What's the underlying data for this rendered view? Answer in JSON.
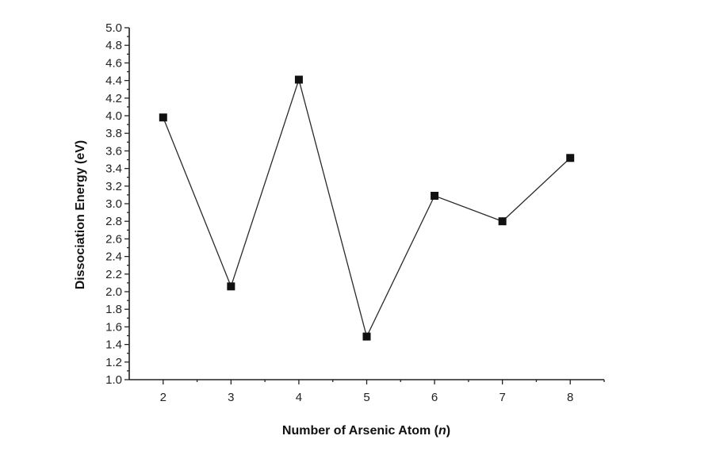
{
  "chart_data": {
    "type": "line",
    "xlabel": "Number of Arsenic Atom (n)",
    "ylabel": "Dissociation Energy (eV)",
    "x": [
      2,
      3,
      4,
      5,
      6,
      7,
      8
    ],
    "series": [
      {
        "values": [
          3.98,
          2.06,
          4.41,
          1.49,
          3.09,
          2.8,
          3.52
        ]
      }
    ],
    "xlim": [
      1.5,
      8.5
    ],
    "ylim": [
      1.0,
      5.0
    ],
    "xticks": [
      2,
      3,
      4,
      5,
      6,
      7,
      8
    ],
    "yticks": [
      1.0,
      1.2,
      1.4,
      1.6,
      1.8,
      2.0,
      2.2,
      2.4,
      2.6,
      2.8,
      3.0,
      3.2,
      3.4,
      3.6,
      3.8,
      4.0,
      4.2,
      4.4,
      4.6,
      4.8,
      5.0
    ],
    "marker": "square",
    "line_color": "#2a2a2a",
    "marker_color": "#111111",
    "grid": false,
    "legend": false
  }
}
